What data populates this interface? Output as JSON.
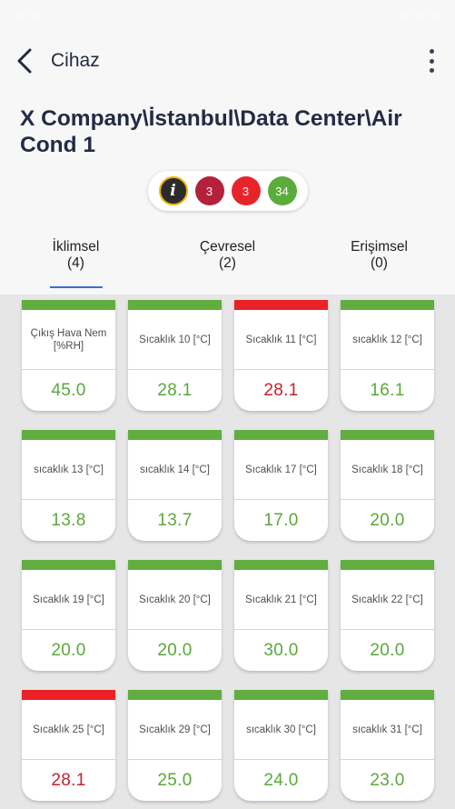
{
  "status_bar": {
    "time": "",
    "right": ""
  },
  "app_bar": {
    "title": "Cihaz"
  },
  "device": {
    "title": "X Company\\İstanbul\\Data Center\\Air Cond 1"
  },
  "badges": [
    {
      "name": "info",
      "label": "i"
    },
    {
      "name": "critical",
      "label": "3"
    },
    {
      "name": "warning",
      "label": "3"
    },
    {
      "name": "ok",
      "label": "34"
    }
  ],
  "tabs": [
    {
      "label": "İklimsel",
      "count": "(4)"
    },
    {
      "label": "Çevresel",
      "count": "(2)"
    },
    {
      "label": "Erişimsel",
      "count": "(0)"
    }
  ],
  "colors": {
    "ok": "#62ad3f",
    "alarm": "#ea2127",
    "accent": "#3b6fd1"
  },
  "sensors": [
    {
      "label": "Çıkış Hava Nem [%RH]",
      "value": "45.0",
      "status": "ok"
    },
    {
      "label": "Sıcaklık 10 [°C]",
      "value": "28.1",
      "status": "ok"
    },
    {
      "label": "Sıcaklık 11 [°C]",
      "value": "28.1",
      "status": "alarm"
    },
    {
      "label": "sıcaklık 12 [°C]",
      "value": "16.1",
      "status": "ok"
    },
    {
      "label": "sıcaklık 13 [°C]",
      "value": "13.8",
      "status": "ok"
    },
    {
      "label": "sıcaklık 14 [°C]",
      "value": "13.7",
      "status": "ok"
    },
    {
      "label": "Sıcaklık 17 [°C]",
      "value": "17.0",
      "status": "ok"
    },
    {
      "label": "Sıcaklık 18 [°C]",
      "value": "20.0",
      "status": "ok"
    },
    {
      "label": "Sıcaklık 19 [°C]",
      "value": "20.0",
      "status": "ok"
    },
    {
      "label": "Sıcaklık 20 [°C]",
      "value": "20.0",
      "status": "ok"
    },
    {
      "label": "Sıcaklık 21 [°C]",
      "value": "30.0",
      "status": "ok"
    },
    {
      "label": "Sıcaklık 22 [°C]",
      "value": "20.0",
      "status": "ok"
    },
    {
      "label": "Sıcaklık 25 [°C]",
      "value": "28.1",
      "status": "alarm"
    },
    {
      "label": "Sıcaklık 29 [°C]",
      "value": "25.0",
      "status": "ok"
    },
    {
      "label": "sıcaklık 30 [°C]",
      "value": "24.0",
      "status": "ok"
    },
    {
      "label": "sıcaklık 31 [°C]",
      "value": "23.0",
      "status": "ok"
    }
  ]
}
